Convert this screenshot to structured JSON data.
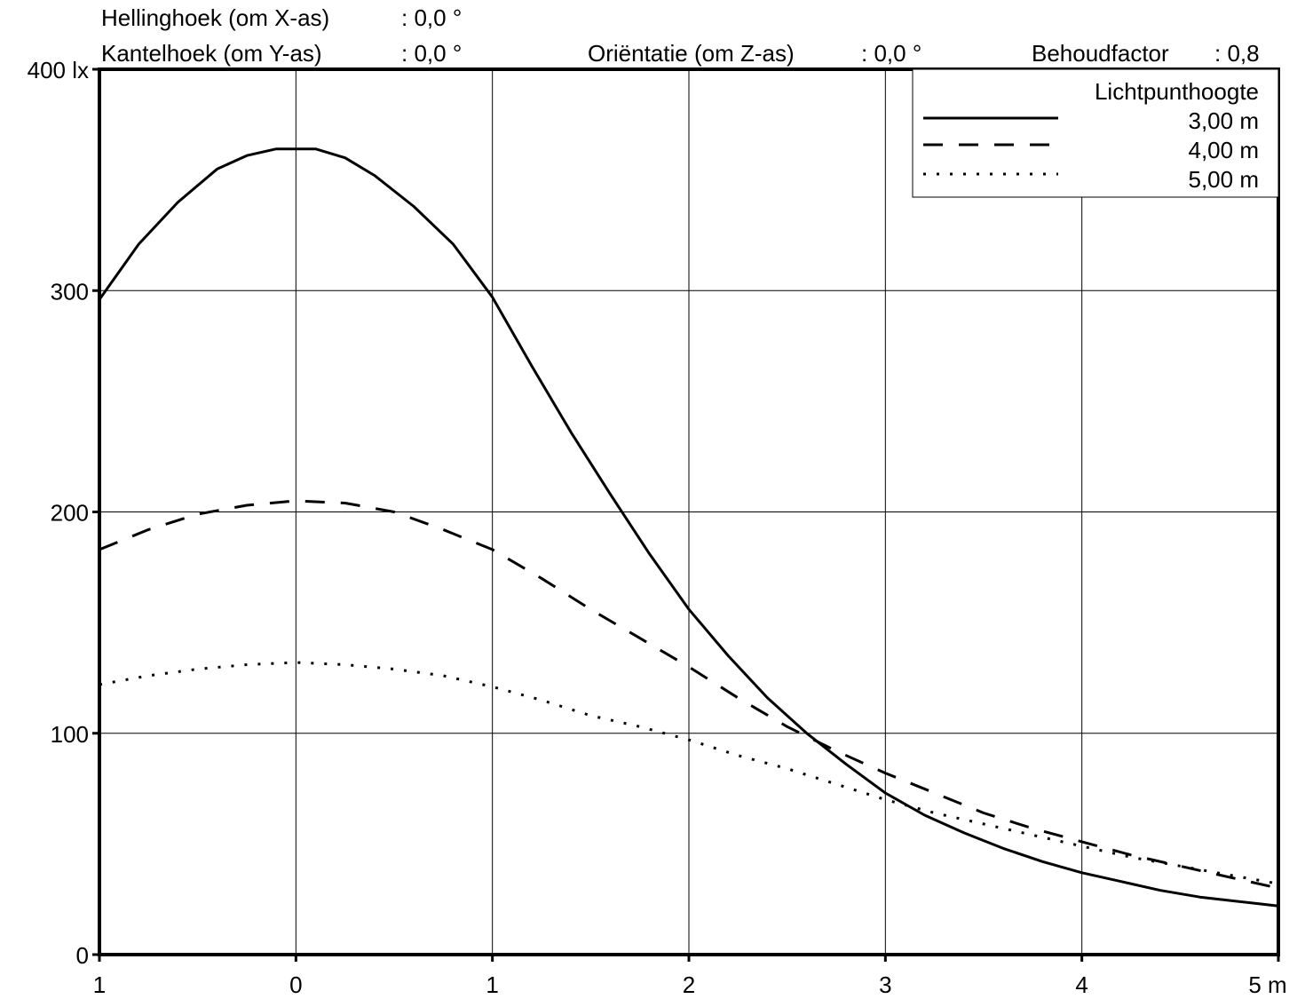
{
  "header": {
    "tilt_label": "Hellinghoek (om X-as)",
    "tilt_value": ": 0,0 °",
    "cant_label": "Kantelhoek (om Y-as)",
    "cant_value": ": 0,0 °",
    "orientation_label": "Oriëntatie (om Z-as)",
    "orientation_value": ": 0,0 °",
    "maintenance_label": "Behoudfactor",
    "maintenance_value": ": 0,8"
  },
  "chart_data": {
    "type": "line",
    "xlim": [
      -1,
      5
    ],
    "ylim": [
      0,
      400
    ],
    "x_ticks": [
      -1,
      0,
      1,
      2,
      3,
      4,
      5
    ],
    "x_tick_labels": [
      "1",
      "0",
      "1",
      "2",
      "3",
      "4",
      "5 m"
    ],
    "y_ticks": [
      0,
      100,
      200,
      300,
      400
    ],
    "y_tick_labels": [
      "0",
      "100",
      "200",
      "300",
      "400 lx"
    ],
    "grid": true,
    "legend_title": "Lichtpunthoogte",
    "legend_position": "top-right",
    "series": [
      {
        "name": "3,00 m",
        "style": "solid",
        "x": [
          -1,
          -0.8,
          -0.6,
          -0.4,
          -0.25,
          -0.1,
          0,
          0.1,
          0.25,
          0.4,
          0.6,
          0.8,
          1.0,
          1.2,
          1.4,
          1.6,
          1.8,
          2.0,
          2.2,
          2.4,
          2.6,
          2.8,
          3.0,
          3.2,
          3.4,
          3.6,
          3.8,
          4.0,
          4.2,
          4.4,
          4.6,
          4.8,
          5.0
        ],
        "y": [
          296,
          321,
          340,
          355,
          361,
          364,
          364,
          364,
          360,
          352,
          338,
          321,
          297,
          266,
          236,
          208,
          181,
          156,
          135,
          116,
          100,
          86,
          73,
          63,
          55,
          48,
          42,
          37,
          33,
          29,
          26,
          24,
          22
        ]
      },
      {
        "name": "4,00 m",
        "style": "dashed",
        "x": [
          -1,
          -0.75,
          -0.5,
          -0.25,
          0,
          0.25,
          0.5,
          0.75,
          1.0,
          1.25,
          1.5,
          1.75,
          2.0,
          2.25,
          2.5,
          2.75,
          3.0,
          3.25,
          3.5,
          3.75,
          4.0,
          4.25,
          4.5,
          4.75,
          5.0
        ],
        "y": [
          183,
          192,
          199,
          203,
          205,
          204,
          200,
          192,
          183,
          170,
          156,
          143,
          130,
          116,
          103,
          92,
          82,
          73,
          64,
          57,
          51,
          45,
          40,
          35,
          30
        ]
      },
      {
        "name": "5,00 m",
        "style": "dotted",
        "x": [
          -1,
          -0.75,
          -0.5,
          -0.25,
          0,
          0.25,
          0.5,
          0.75,
          1.0,
          1.25,
          1.5,
          1.75,
          2.0,
          2.25,
          2.5,
          2.75,
          3.0,
          3.25,
          3.5,
          3.75,
          4.0,
          4.25,
          4.5,
          4.75,
          5.0
        ],
        "y": [
          122,
          126,
          129,
          131,
          132,
          131,
          129,
          126,
          121,
          115,
          108,
          103,
          97,
          90,
          84,
          77,
          70,
          64,
          59,
          54,
          49,
          44,
          40,
          36,
          32
        ]
      }
    ]
  }
}
